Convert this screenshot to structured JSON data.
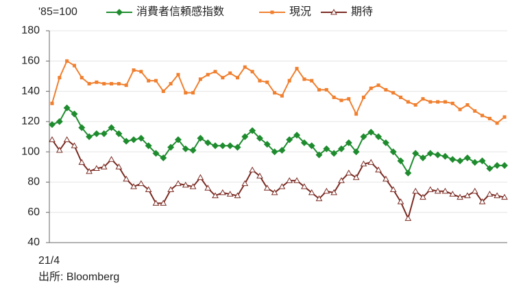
{
  "chart_data": {
    "type": "line",
    "y_label": "'85=100",
    "source": "出所: Bloomberg",
    "categories": [
      "21/4",
      null,
      null,
      null,
      null,
      null,
      null,
      null,
      null,
      null,
      null,
      null,
      null,
      null,
      null,
      null,
      null,
      null,
      null,
      null,
      null,
      null,
      null,
      null,
      null,
      null,
      null,
      null,
      null,
      null,
      null,
      null,
      null,
      null,
      null,
      null,
      null,
      null,
      null,
      null,
      null,
      null,
      null,
      null,
      null,
      null,
      null,
      null,
      null,
      null,
      null,
      null,
      null,
      null,
      null,
      null,
      null,
      null,
      null,
      null,
      null,
      null
    ],
    "series": [
      {
        "name": "消費者信頼感指数",
        "color": "#1e8c2e",
        "marker": "diamond",
        "values": [
          118,
          120,
          129,
          125,
          116,
          110,
          112,
          112,
          116,
          112,
          107,
          108,
          109,
          104,
          99,
          96,
          103,
          108,
          102,
          101,
          109,
          106,
          104,
          104,
          104,
          103,
          110,
          114,
          109,
          105,
          100,
          101,
          108,
          111,
          106,
          104,
          98,
          102,
          99,
          102,
          106,
          100,
          110,
          113,
          110,
          106,
          100,
          94,
          86,
          99,
          96,
          99,
          98,
          97,
          95,
          94,
          96,
          93,
          94,
          89,
          91,
          91
        ]
      },
      {
        "name": "現況",
        "color": "#f07f2e",
        "marker": "square",
        "values": [
          132,
          149,
          160,
          157,
          149,
          145,
          146,
          145,
          145,
          145,
          144,
          154,
          153,
          147,
          147,
          140,
          145,
          151,
          139,
          139,
          148,
          151,
          153,
          149,
          152,
          149,
          156,
          153,
          147,
          146,
          139,
          137,
          147,
          155,
          148,
          147,
          141,
          141,
          136,
          134,
          135,
          125,
          136,
          142,
          144,
          141,
          139,
          136,
          133,
          131,
          135,
          133,
          133,
          133,
          132,
          128,
          131,
          127,
          124,
          122,
          119,
          123
        ]
      },
      {
        "name": "期待",
        "color": "#7a2a22",
        "marker": "triangle",
        "values": [
          108,
          101,
          108,
          104,
          93,
          87,
          89,
          90,
          95,
          90,
          82,
          77,
          79,
          75,
          66,
          66,
          75,
          79,
          78,
          77,
          83,
          76,
          71,
          73,
          72,
          71,
          79,
          88,
          84,
          76,
          73,
          77,
          81,
          81,
          77,
          73,
          69,
          74,
          73,
          81,
          86,
          83,
          92,
          93,
          88,
          82,
          75,
          67,
          56,
          74,
          70,
          75,
          74,
          74,
          72,
          70,
          71,
          74,
          67,
          72,
          71,
          70
        ]
      }
    ],
    "ylim": [
      40,
      180
    ],
    "yticks": [
      40,
      60,
      80,
      100,
      120,
      140,
      160,
      180
    ],
    "grid": true
  }
}
